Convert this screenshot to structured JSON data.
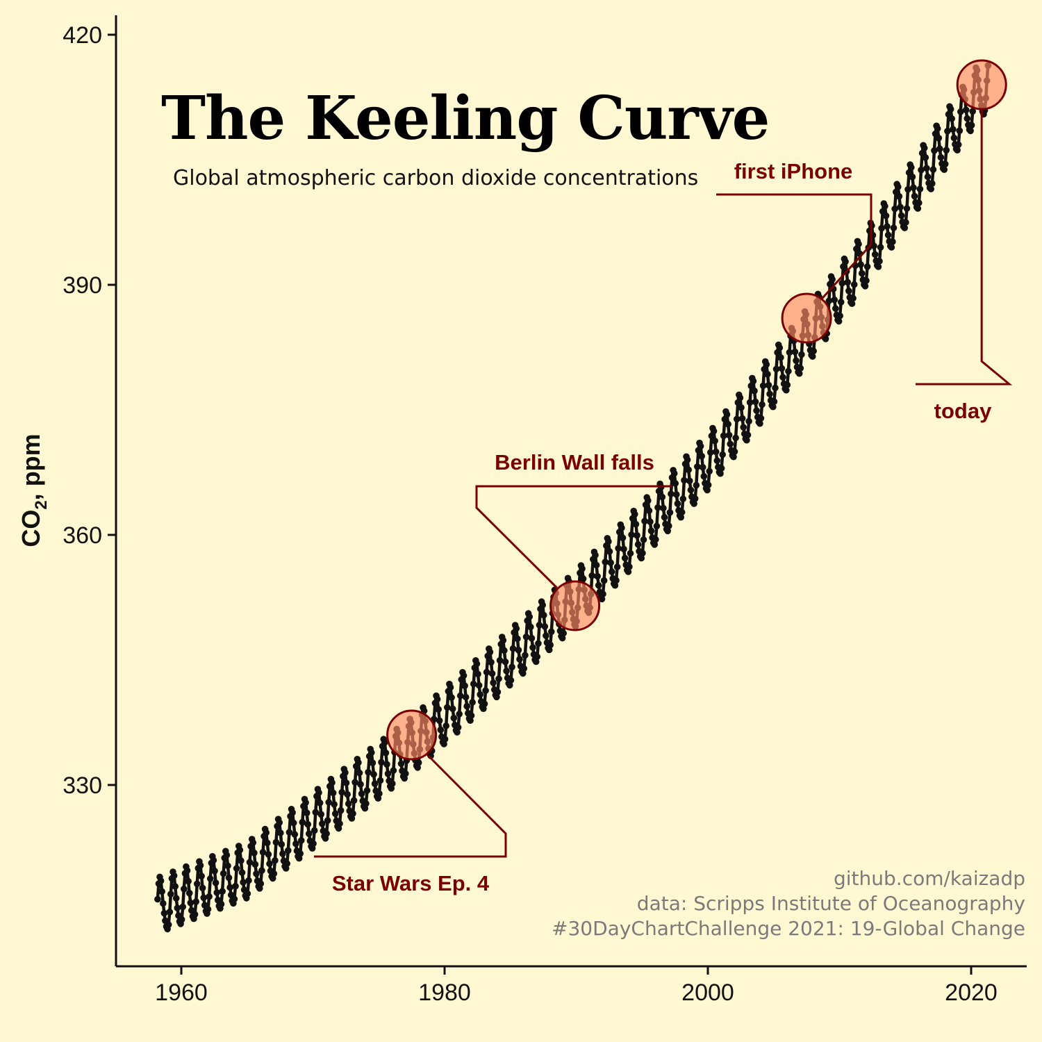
{
  "chart_data": {
    "type": "line",
    "title": "The Keeling Curve",
    "subtitle": "Global atmospheric carbon dioxide concentrations",
    "ylabel_main": "CO",
    "ylabel_sub": "2",
    "ylabel_rest": ", ppm",
    "xlim": [
      1955.5,
      2024
    ],
    "ylim": [
      305,
      422
    ],
    "x_ticks": [
      1960,
      1980,
      2000,
      2020
    ],
    "y_ticks": [
      330,
      360,
      390,
      420
    ],
    "grid": false,
    "trend_knots": {
      "x": [
        1958.2,
        1965,
        1970,
        1977.5,
        1989.9,
        2000,
        2007.5,
        2012,
        2020.8
      ],
      "y": [
        315.3,
        319.5,
        325.5,
        334.5,
        352,
        368.5,
        383.5,
        393,
        413.5
      ]
    },
    "seasonal_amplitude_ppm": 3.2,
    "series": [
      {
        "values_note": "",
        "color": "#111111"
      }
    ],
    "annotations": [
      {
        "label": "Star Wars Ep. 4",
        "x": 1977.5,
        "y": 336
      },
      {
        "label": "Berlin Wall falls",
        "x": 1989.9,
        "y": 351.5
      },
      {
        "label": "first iPhone",
        "x": 2007.5,
        "y": 386
      },
      {
        "label": "today",
        "x": 2020.8,
        "y": 414
      }
    ],
    "captions": [
      "github.com/kaizadp",
      "data: Scripps Institute of Oceanography",
      "#30DayChartChallenge 2021: 19-Global Change"
    ]
  },
  "colors": {
    "background": "#fff8d2",
    "series": "#111111",
    "annotation": "#7a0000",
    "highlight_fill": "#ff8a66",
    "caption": "#7a7a7a"
  }
}
